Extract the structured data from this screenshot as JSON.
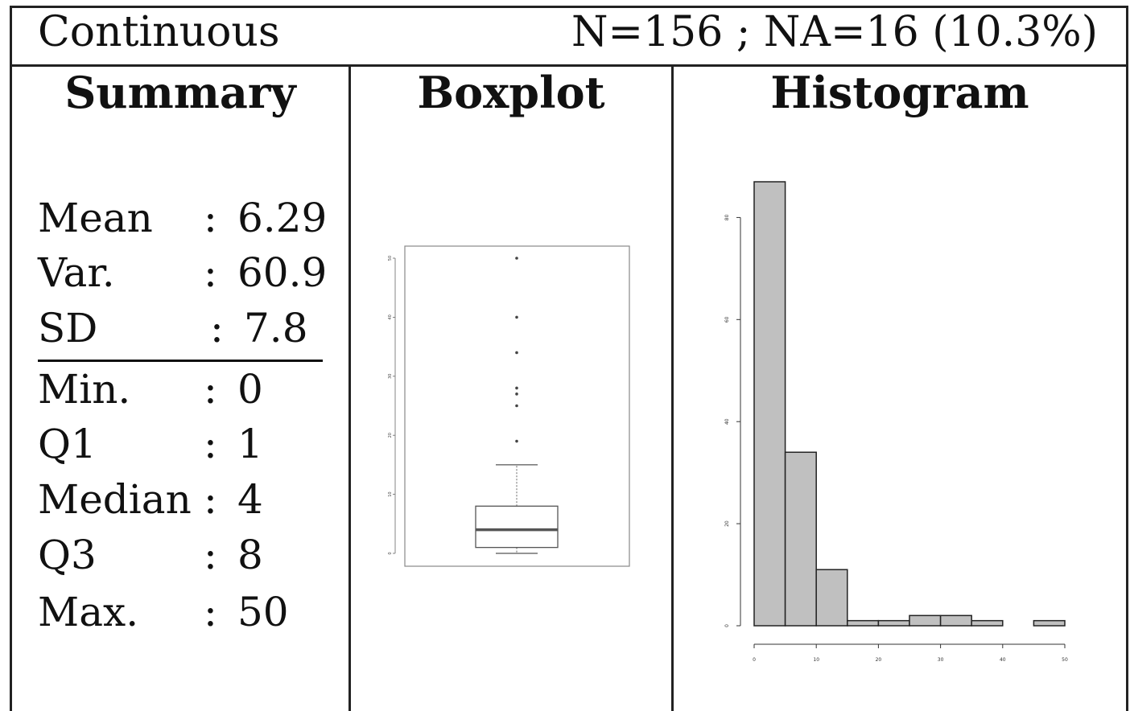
{
  "header": {
    "type_label": "Continuous",
    "counts_label": "N=156 ; NA=16 (10.3%)"
  },
  "columns": {
    "summary_title": "Summary",
    "boxplot_title": "Boxplot",
    "histogram_title": "Histogram"
  },
  "summary": {
    "stats": [
      {
        "label": "Mean",
        "sep": ":",
        "value": "6.29"
      },
      {
        "label": "Var.",
        "sep": ":",
        "value": "60.9"
      },
      {
        "label": "SD",
        "sep": ":",
        "value": "7.8"
      }
    ],
    "quantiles": [
      {
        "label": "Min.",
        "sep": ":",
        "value": "0"
      },
      {
        "label": "Q1",
        "sep": ":",
        "value": "1"
      },
      {
        "label": "Median",
        "sep": ":",
        "value": "4"
      },
      {
        "label": "Q3",
        "sep": ":",
        "value": "8"
      },
      {
        "label": "Max.",
        "sep": ":",
        "value": "50"
      }
    ]
  },
  "chart_data": [
    {
      "type": "boxplot",
      "title": "",
      "ylim": [
        -1,
        51.5
      ],
      "y_ticks": [
        0,
        10,
        20,
        30,
        40,
        50
      ],
      "y_tick_labels": [
        "0",
        "10",
        "20",
        "30",
        "40",
        "50"
      ],
      "whisker_low": 0,
      "q1": 1,
      "median": 4,
      "q3": 8,
      "whisker_high": 15,
      "outliers": [
        19,
        25,
        27,
        28,
        34,
        40,
        50
      ],
      "box_frame": true
    },
    {
      "type": "bar",
      "title": "",
      "xlabel": "",
      "ylabel": "",
      "bin_edges": [
        0,
        5,
        10,
        15,
        20,
        25,
        30,
        35,
        40,
        45,
        50
      ],
      "counts": [
        87,
        34,
        11,
        1,
        1,
        2,
        2,
        1,
        0,
        1
      ],
      "xlim": [
        0,
        50
      ],
      "ylim": [
        0,
        87
      ],
      "x_ticks": [
        0,
        10,
        20,
        30,
        40,
        50
      ],
      "x_tick_labels": [
        "0",
        "10",
        "20",
        "30",
        "40",
        "50"
      ],
      "y_ticks": [
        0,
        20,
        40,
        60,
        80
      ],
      "y_tick_labels": [
        "0",
        "20",
        "40",
        "60",
        "80"
      ],
      "bar_color": "#c0c0c0"
    }
  ]
}
